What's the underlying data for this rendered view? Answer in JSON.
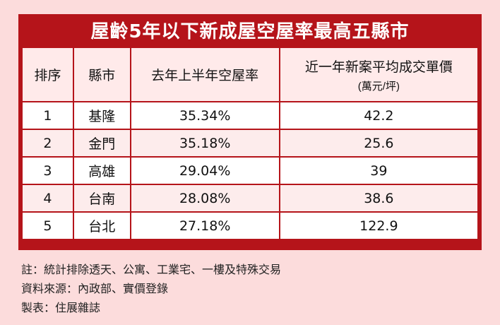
{
  "title": "屋齡5年以下新成屋空屋率最高五縣市",
  "table": {
    "headers": {
      "rank": "排序",
      "city": "縣市",
      "vacancy": "去年上半年空屋率",
      "price": "近一年新案平均成交單價",
      "price_unit": "(萬元/坪)"
    },
    "rows": [
      {
        "rank": "1",
        "city": "基隆",
        "vacancy": "35.34%",
        "price": "42.2"
      },
      {
        "rank": "2",
        "city": "金門",
        "vacancy": "35.18%",
        "price": "25.6"
      },
      {
        "rank": "3",
        "city": "高雄",
        "vacancy": "29.04%",
        "price": "39"
      },
      {
        "rank": "4",
        "city": "台南",
        "vacancy": "28.08%",
        "price": "38.6"
      },
      {
        "rank": "5",
        "city": "台北",
        "vacancy": "27.18%",
        "price": "122.9"
      }
    ]
  },
  "notes": [
    "註：統計排除透天、公寓、工業宅、一樓及特殊交易",
    "資料來源：內政部、實價登錄",
    "製表：住展雜誌"
  ],
  "colors": {
    "frame": "#b5141a",
    "background": "#fcdcdc",
    "row_alt": "#fdecec"
  }
}
